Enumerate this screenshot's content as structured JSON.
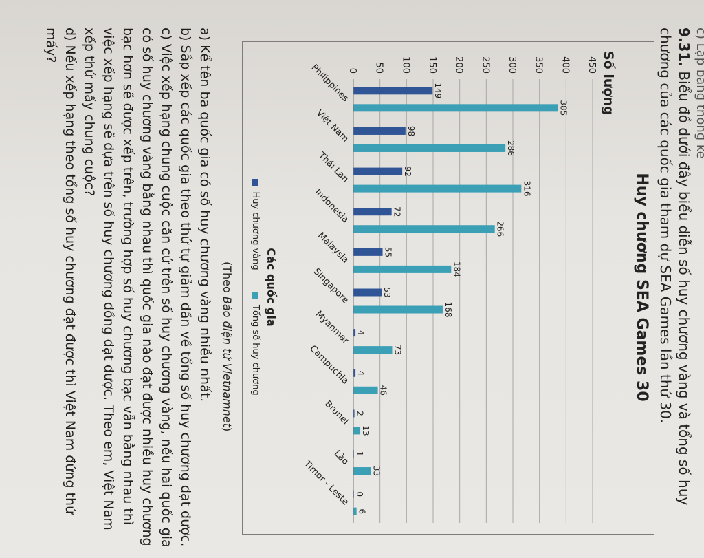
{
  "header": {
    "prev_line": "c) Lập bảng thống kê",
    "question_number": "9.31.",
    "question_text": "Biểu đồ dưới đây biểu diễn số huy chương vàng và tổng số huy chương của các quốc gia tham dự SEA Games lần thứ 30."
  },
  "chart_data": {
    "type": "bar",
    "title": "Huy chương SEA Games 30",
    "ylabel": "Số lượng",
    "xlabel": "Các quốc gia",
    "ylim": [
      0,
      450
    ],
    "yticks": [
      0,
      50,
      100,
      150,
      200,
      250,
      300,
      350,
      400,
      450
    ],
    "categories": [
      "Philippines",
      "Việt Nam",
      "Thái Lan",
      "Indonesia",
      "Malaysia",
      "Singapore",
      "Myanmar",
      "Campuchia",
      "Brunei",
      "Lào",
      "Timor - Leste"
    ],
    "series": [
      {
        "name": "Huy chương vàng",
        "color": "#2f5597",
        "values": [
          149,
          98,
          92,
          72,
          55,
          53,
          4,
          4,
          2,
          1,
          0
        ]
      },
      {
        "name": "Tổng số huy chương",
        "color": "#3b9fb5",
        "values": [
          385,
          286,
          316,
          266,
          184,
          168,
          73,
          46,
          13,
          33,
          6
        ]
      }
    ]
  },
  "source": {
    "prefix": "(Theo ",
    "name": "Báo điện tử Vietnamnet",
    "suffix": ")"
  },
  "questions": {
    "a": "a) Kể tên ba quốc gia có số huy chương vàng nhiều nhất.",
    "b": "b) Sắp xếp các quốc gia theo thứ tự giảm dần về tổng số huy chương đạt được.",
    "c": "c) Việc xếp hạng chung cuộc căn cứ trên số huy chương vàng, nếu hai quốc gia có số huy chương vàng bằng nhau thì quốc gia nào đạt được nhiều huy chương bạc hơn sẽ được xếp trên, trường hợp số huy chương bạc vẫn bằng nhau thì việc xếp hạng sẽ dựa trên số huy chương đồng đạt được. Theo em, Việt Nam xếp thứ mấy chung cuộc?",
    "d": "d) Nếu xếp hạng theo tổng số huy chương đạt được thì Việt Nam đứng thứ mấy?"
  }
}
